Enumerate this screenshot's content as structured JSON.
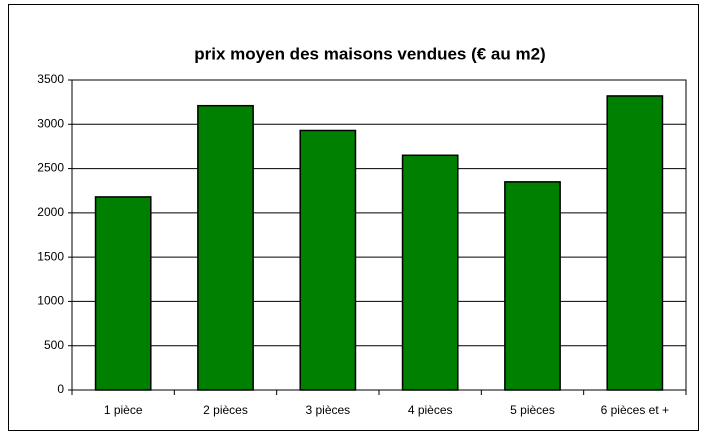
{
  "chart_data": {
    "type": "bar",
    "title": "prix moyen des maisons vendues (€ au m2)",
    "categories": [
      "1 pièce",
      "2 pièces",
      "3 pièces",
      "4 pièces",
      "5 pièces",
      "6 pièces et +"
    ],
    "values": [
      2180,
      3210,
      2930,
      2650,
      2350,
      3320
    ],
    "color": "#008000",
    "ylim": [
      0,
      3500
    ],
    "yticks": [
      0,
      500,
      1000,
      1500,
      2000,
      2500,
      3000,
      3500
    ],
    "grid": true
  }
}
